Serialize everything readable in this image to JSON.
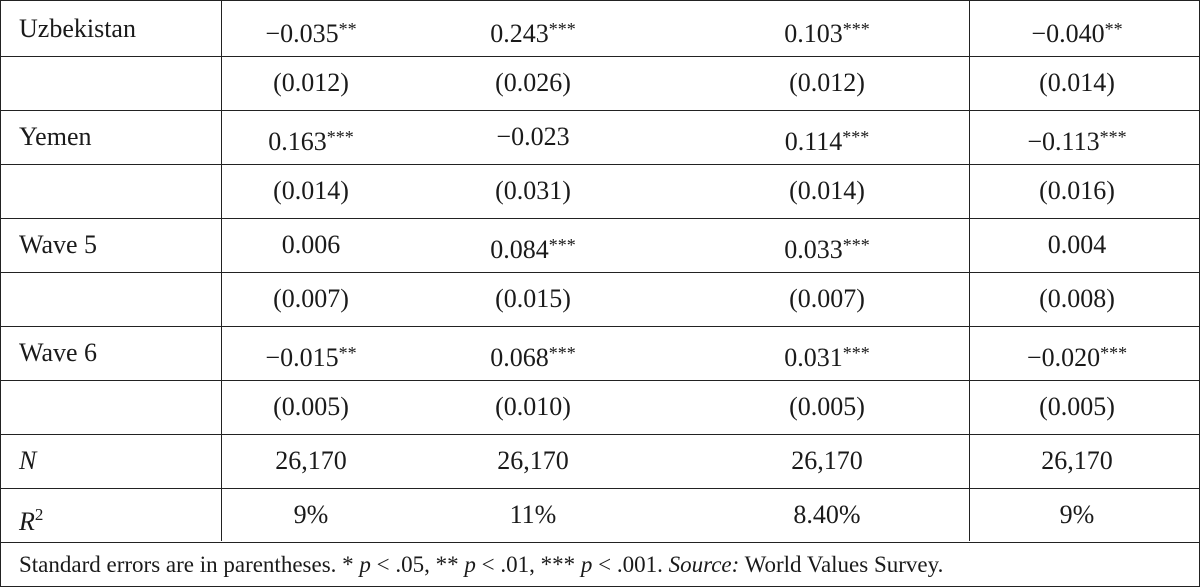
{
  "table": {
    "rows": [
      {
        "label": {
          "text": "Uzbekistan"
        },
        "cells": [
          {
            "text": "−0.035",
            "sig": "**"
          },
          {
            "text": "0.243",
            "sig": "***"
          },
          {
            "text": "0.103",
            "sig": "***"
          },
          {
            "text": "−0.040",
            "sig": "**"
          }
        ]
      },
      {
        "cells": [
          {
            "text": "(0.012)"
          },
          {
            "text": "(0.026)"
          },
          {
            "text": "(0.012)"
          },
          {
            "text": "(0.014)"
          }
        ]
      },
      {
        "label": {
          "text": "Yemen"
        },
        "cells": [
          {
            "text": "0.163",
            "sig": "***"
          },
          {
            "text": "−0.023"
          },
          {
            "text": "0.114",
            "sig": "***"
          },
          {
            "text": "−0.113",
            "sig": "***"
          }
        ]
      },
      {
        "cells": [
          {
            "text": "(0.014)"
          },
          {
            "text": "(0.031)"
          },
          {
            "text": "(0.014)"
          },
          {
            "text": "(0.016)"
          }
        ]
      },
      {
        "label": {
          "text": "Wave 5"
        },
        "cells": [
          {
            "text": "0.006"
          },
          {
            "text": "0.084",
            "sig": "***"
          },
          {
            "text": "0.033",
            "sig": "***"
          },
          {
            "text": "0.004"
          }
        ]
      },
      {
        "cells": [
          {
            "text": "(0.007)"
          },
          {
            "text": "(0.015)"
          },
          {
            "text": "(0.007)"
          },
          {
            "text": "(0.008)"
          }
        ]
      },
      {
        "label": {
          "text": "Wave 6"
        },
        "cells": [
          {
            "text": "−0.015",
            "sig": "**"
          },
          {
            "text": "0.068",
            "sig": "***"
          },
          {
            "text": "0.031",
            "sig": "***"
          },
          {
            "text": "−0.020",
            "sig": "***"
          }
        ]
      },
      {
        "cells": [
          {
            "text": "(0.005)"
          },
          {
            "text": "(0.010)"
          },
          {
            "text": "(0.005)"
          },
          {
            "text": "(0.005)"
          }
        ]
      },
      {
        "label": {
          "text": "N",
          "italic": true
        },
        "cells": [
          {
            "text": "26,170"
          },
          {
            "text": "26,170"
          },
          {
            "text": "26,170"
          },
          {
            "text": "26,170"
          }
        ]
      },
      {
        "label": {
          "text": "R",
          "italic": true,
          "sup": "2"
        },
        "cells": [
          {
            "text": "9%"
          },
          {
            "text": "11%"
          },
          {
            "text": "8.40%"
          },
          {
            "text": "9%"
          }
        ]
      }
    ],
    "footnote": [
      {
        "text": "Standard errors are in parentheses. * "
      },
      {
        "text": "p",
        "italic": true
      },
      {
        "text": " < .05, ** "
      },
      {
        "text": "p",
        "italic": true
      },
      {
        "text": " < .01, *** "
      },
      {
        "text": "p",
        "italic": true
      },
      {
        "text": " < .001. "
      },
      {
        "text": "Source:",
        "italic": true
      },
      {
        "text": " World Values Survey."
      }
    ]
  }
}
